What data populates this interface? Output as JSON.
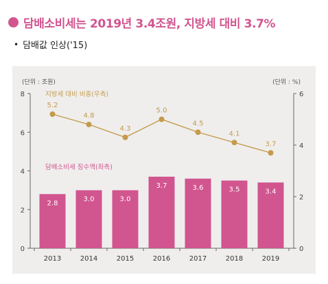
{
  "header": {
    "title": "담배소비세는 2019년 3.4조원, 지방세 대비 3.7%",
    "subtitle": "담배값 인상('15)",
    "bullet_color": "#d1558f"
  },
  "chart_data": {
    "type": "bar",
    "categories": [
      "2013",
      "2014",
      "2015",
      "2016",
      "2017",
      "2018",
      "2019"
    ],
    "series": [
      {
        "name": "담배소비세 징수액(좌측)",
        "type": "bar",
        "axis": "left",
        "color": "#d1558f",
        "values": [
          2.8,
          3.0,
          3.0,
          3.7,
          3.6,
          3.5,
          3.4
        ],
        "labels": [
          "2.8",
          "3.0",
          "3.0",
          "3.7",
          "3.6",
          "3.5",
          "3.4"
        ]
      },
      {
        "name": "지방세 대비 비중(우측)",
        "type": "line",
        "axis": "right",
        "color": "#c49a4b",
        "values": [
          5.2,
          4.8,
          4.3,
          5.0,
          4.5,
          4.1,
          3.7
        ],
        "labels": [
          "5.2",
          "4.8",
          "4.3",
          "5.0",
          "4.5",
          "4.1",
          "3.7"
        ]
      }
    ],
    "y_left": {
      "unit": "(단위 : 조원)",
      "ylim": [
        0,
        8
      ],
      "ticks": [
        "0",
        "2",
        "4",
        "6",
        "8"
      ]
    },
    "y_right": {
      "unit": "(단위 : %)",
      "ylim": [
        0,
        6
      ],
      "ticks": [
        "0",
        "2",
        "4",
        "6"
      ]
    },
    "grid": false,
    "colors": {
      "panel_bg": "#efeeed",
      "bar": "#d1558f",
      "line": "#c49a4b",
      "axis": "#666666"
    }
  }
}
